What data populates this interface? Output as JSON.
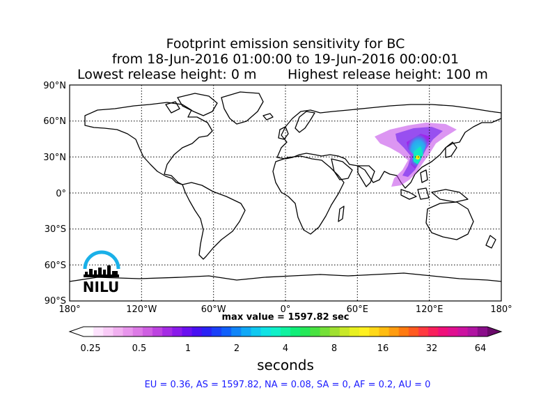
{
  "title": {
    "line1": "Footprint emission sensitivity for BC",
    "line2": "from 18-Jun-2016 01:00:00 to 19-Jun-2016 00:00:01",
    "line3_left": "Lowest release height: 0 m",
    "line3_right": "Highest release height: 100 m"
  },
  "map": {
    "lat_labels": [
      "90°N",
      "60°N",
      "30°N",
      "0°",
      "30°S",
      "60°S",
      "90°S"
    ],
    "lon_labels": [
      "180°",
      "120°W",
      "60°W",
      "0°",
      "60°E",
      "120°E",
      "180°"
    ],
    "grid": "dotted",
    "projection": "equirectangular"
  },
  "logo": {
    "text": "NILU",
    "color": "#1ab0e8"
  },
  "max_value": "max value = 1597.82 sec",
  "colorbar": {
    "label": "seconds",
    "ticks": [
      "0.25",
      "0.5",
      "1",
      "2",
      "4",
      "8",
      "16",
      "32",
      "64"
    ],
    "colors": [
      "#ffffff",
      "#fde3fd",
      "#f9cbf7",
      "#f1b0f0",
      "#e895ec",
      "#dd7ae6",
      "#cf5fe2",
      "#bd43e0",
      "#a52be4",
      "#8a1aea",
      "#6a10f0",
      "#4810f2",
      "#2a22f5",
      "#1a40f8",
      "#1060fa",
      "#1085f8",
      "#10a8f6",
      "#10c8f0",
      "#10e2e4",
      "#10f0c8",
      "#10f2a0",
      "#10ee78",
      "#25e858",
      "#48e240",
      "#74e038",
      "#a0e030",
      "#c8e828",
      "#e8f020",
      "#fff020",
      "#ffd818",
      "#ffbc10",
      "#ff9c10",
      "#ff7a10",
      "#ff5a20",
      "#ff3a40",
      "#f8205c",
      "#ef107a",
      "#e01090",
      "#cc12a0",
      "#b014a2",
      "#8a0e8a"
    ]
  },
  "summary": "EU = 0.36,  AS = 1597.82,  NA = 0.08,  SA = 0,  AF = 0.2,  AU = 0"
}
